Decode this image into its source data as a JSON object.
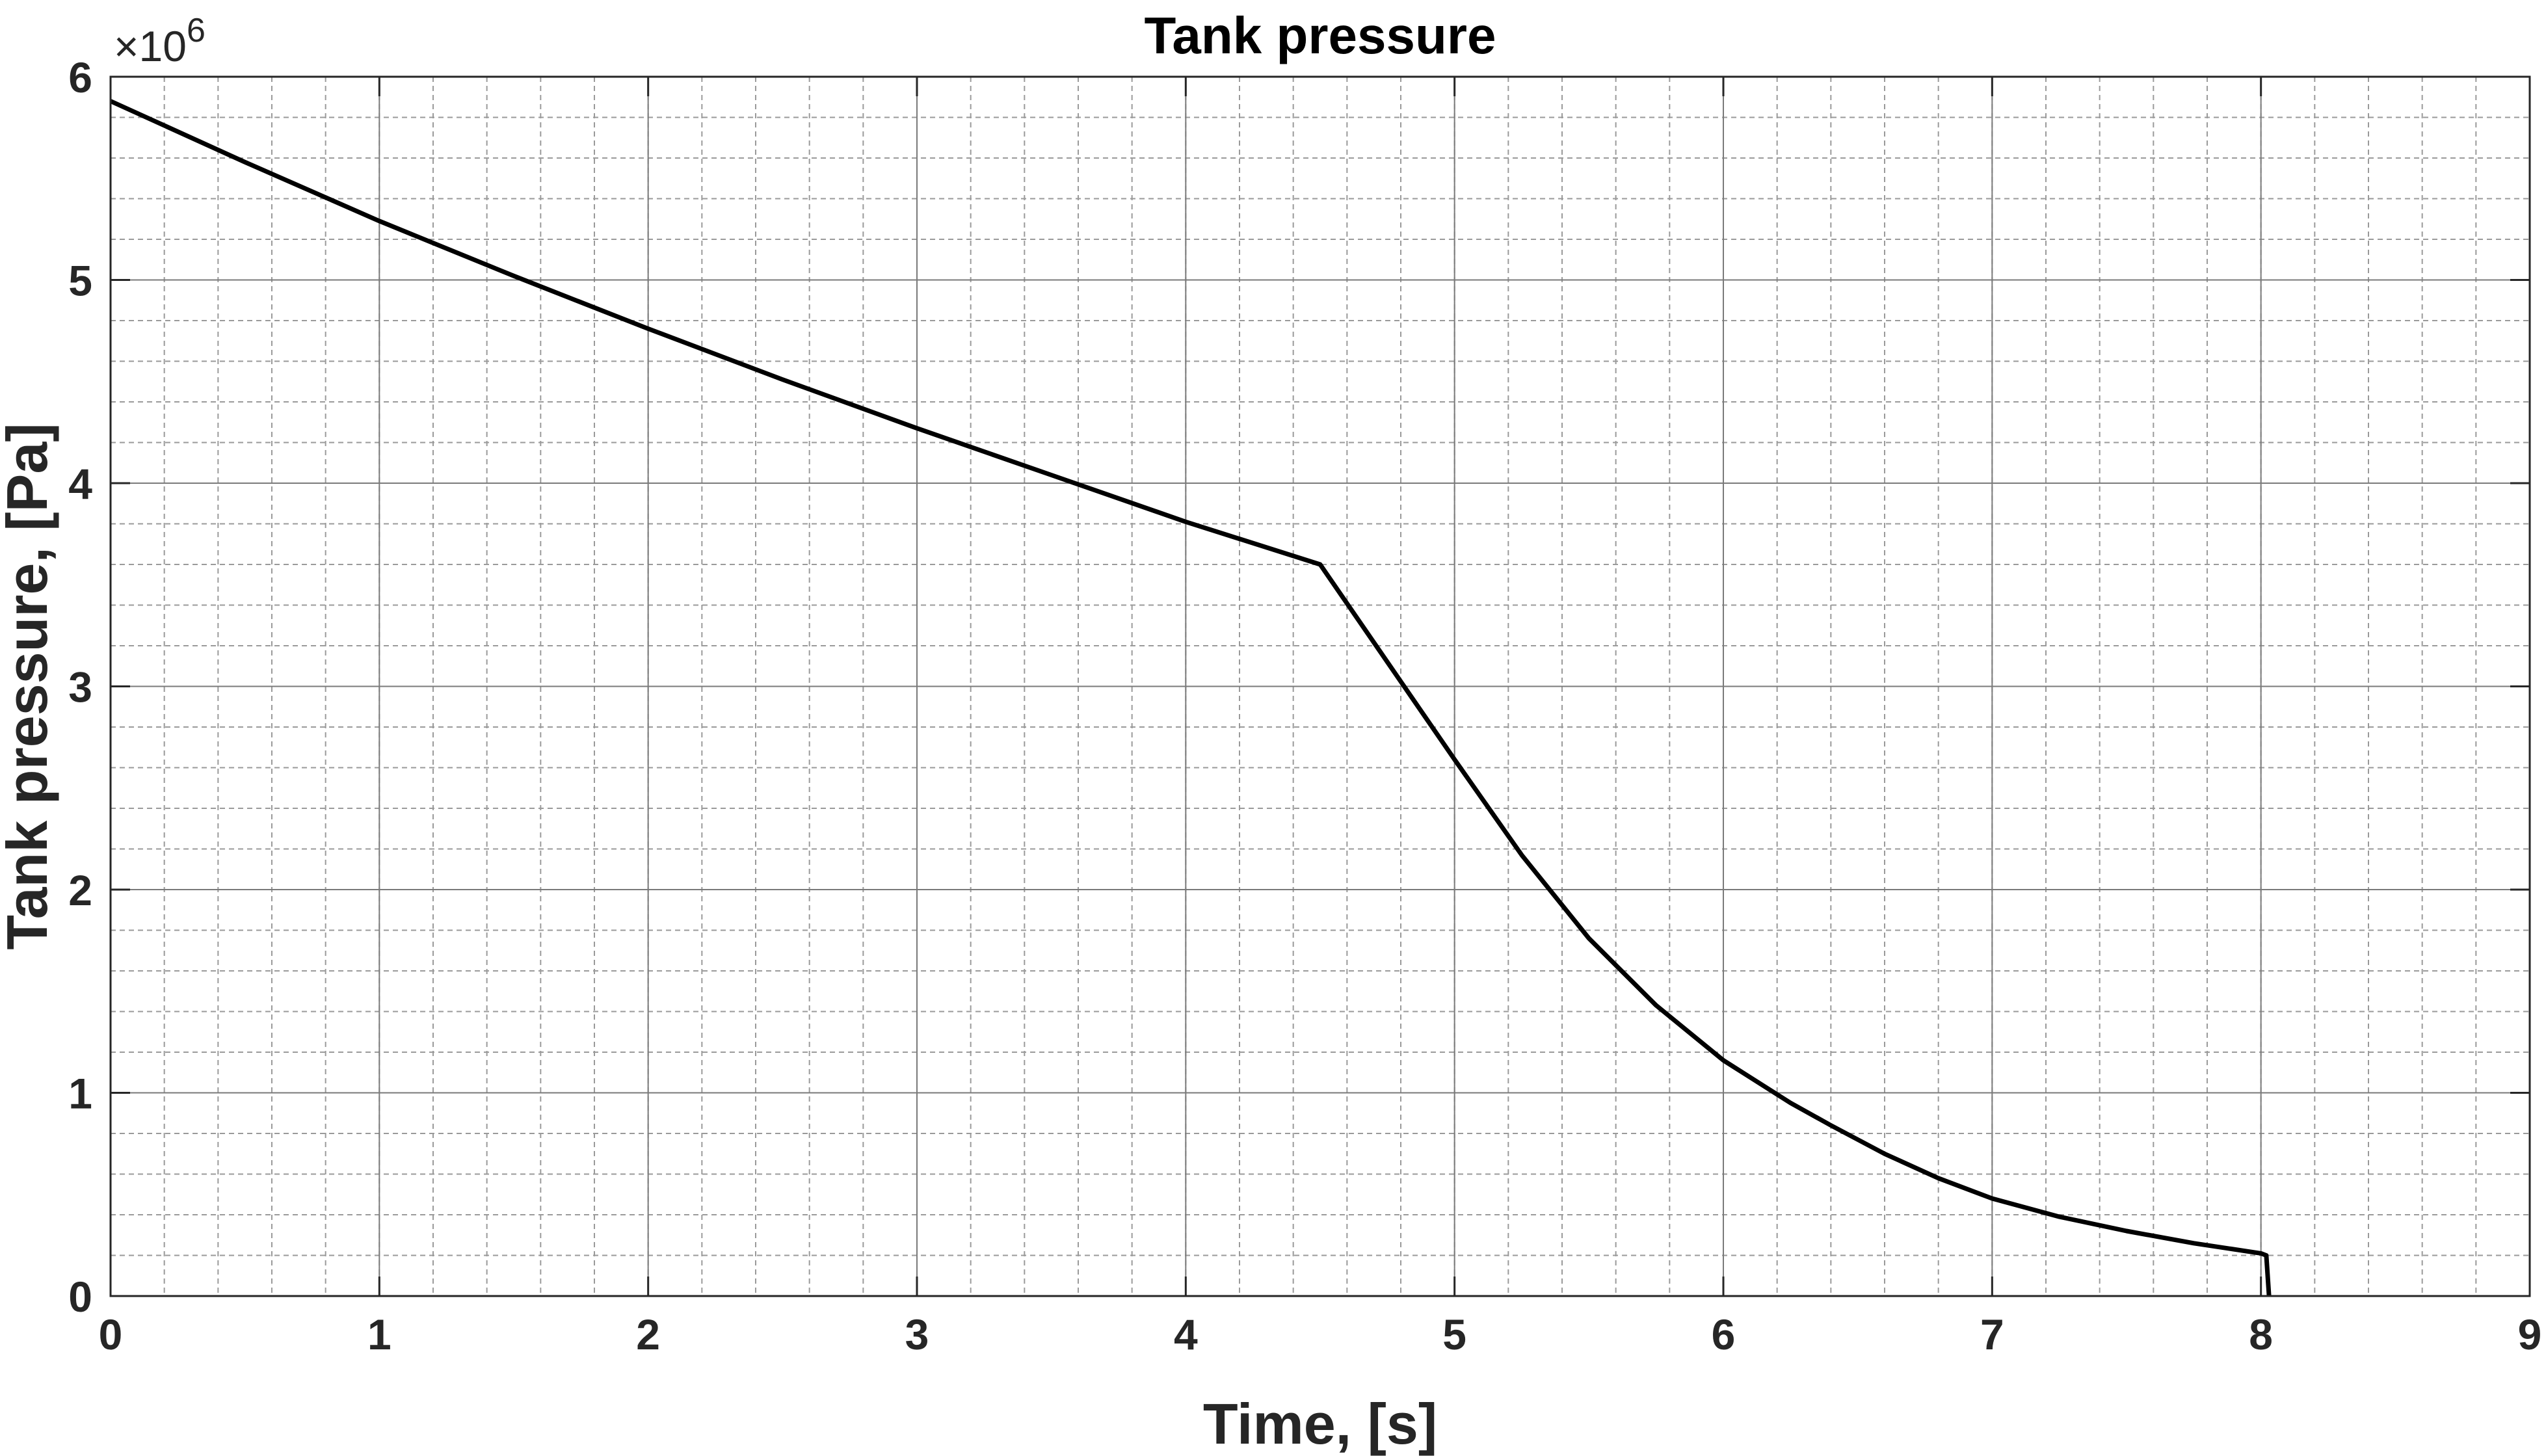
{
  "chart_data": {
    "type": "line",
    "title": "Tank pressure",
    "xlabel": "Time, [s]",
    "ylabel": "Tank pressure, [Pa]",
    "y_multiplier_base": "×10",
    "y_multiplier_exponent": "6",
    "xlim": [
      0,
      9
    ],
    "ylim": [
      0,
      6000000
    ],
    "x_ticks": [
      0,
      1,
      2,
      3,
      4,
      5,
      6,
      7,
      8,
      9
    ],
    "x_tick_labels": [
      "0",
      "1",
      "2",
      "3",
      "4",
      "5",
      "6",
      "7",
      "8",
      "9"
    ],
    "y_ticks": [
      0,
      1000000,
      2000000,
      3000000,
      4000000,
      5000000,
      6000000
    ],
    "y_tick_labels": [
      "0",
      "1",
      "2",
      "3",
      "4",
      "5",
      "6"
    ],
    "grid": true,
    "minor_grid": true,
    "line_color": "#000000",
    "series": [
      {
        "x": [
          0,
          0.5,
          1,
          1.5,
          2,
          2.5,
          3,
          3.5,
          4,
          4.5,
          4.75,
          5,
          5.25,
          5.5,
          5.75,
          6,
          6.25,
          6.4,
          6.6,
          6.8,
          7,
          7.25,
          7.5,
          7.75,
          8,
          8.02,
          8.03
        ],
        "y": [
          5880000,
          5580000,
          5290000,
          5020000,
          4760000,
          4510000,
          4270000,
          4040000,
          3810000,
          3600000,
          3120000,
          2640000,
          2170000,
          1760000,
          1430000,
          1160000,
          950000,
          840000,
          700000,
          580000,
          480000,
          390000,
          320000,
          260000,
          210000,
          200000,
          0
        ]
      }
    ]
  }
}
